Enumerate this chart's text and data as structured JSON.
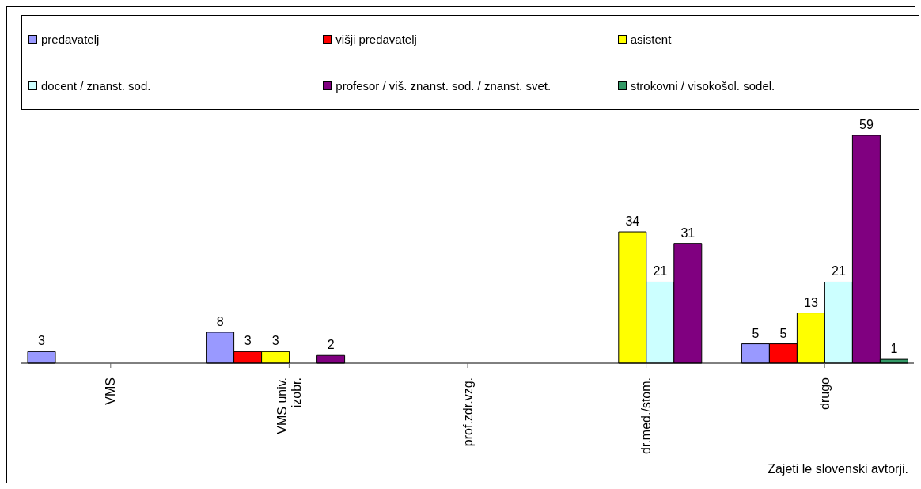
{
  "chart_data": {
    "type": "bar",
    "categories": [
      "VMS",
      "VMS univ. izobr.",
      "prof.zdr.vzg.",
      "dr.med./stom.",
      "drugo"
    ],
    "series": [
      {
        "name": "predavatelj",
        "color": "#9999ff",
        "values": [
          3,
          8,
          null,
          null,
          5
        ]
      },
      {
        "name": "višji predavatelj",
        "color": "#ff0000",
        "values": [
          null,
          3,
          null,
          null,
          5
        ]
      },
      {
        "name": "asistent",
        "color": "#ffff00",
        "values": [
          null,
          3,
          null,
          34,
          13
        ]
      },
      {
        "name": "docent / znanst. sod.",
        "color": "#ccffff",
        "values": [
          null,
          null,
          null,
          21,
          21
        ]
      },
      {
        "name": "profesor / viš. znanst. sod. / znanst. svet.",
        "color": "#800080",
        "values": [
          null,
          2,
          null,
          31,
          59
        ]
      },
      {
        "name": "strokovni / visokošol. sodel.",
        "color": "#339966",
        "values": [
          null,
          null,
          null,
          null,
          1
        ]
      }
    ],
    "data_labels": true,
    "legend": "top",
    "grid": false,
    "annotations": [
      "Zajeti le slovenski avtorji."
    ]
  }
}
